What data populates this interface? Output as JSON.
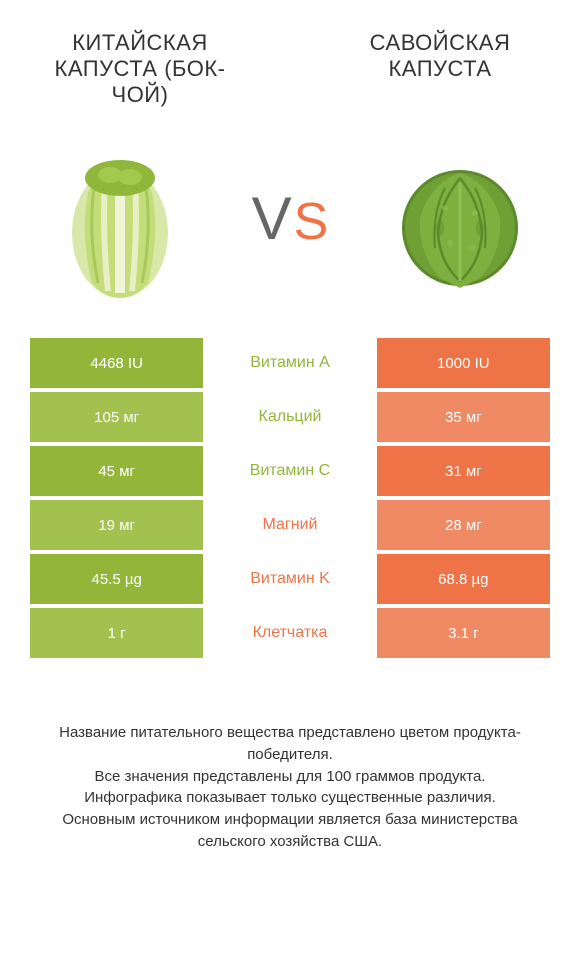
{
  "colors": {
    "left": "#93b53a",
    "right": "#ee7347",
    "left_dark": "#7a9a2f",
    "left_light": "#a3c14e",
    "right_light": "#f08a65",
    "mid_green": "#93b53a",
    "mid_orange": "#ee7347",
    "text": "#333333"
  },
  "left_title": "КИТАЙСКАЯ КАПУСТА (БОК-ЧОЙ)",
  "right_title": "САВОЙСКАЯ КАПУСТА",
  "vs_v": "V",
  "vs_s": "S",
  "rows": [
    {
      "left": "4468 IU",
      "mid": "Витамин A",
      "right": "1000 IU",
      "winner": "left"
    },
    {
      "left": "105 мг",
      "mid": "Кальций",
      "right": "35 мг",
      "winner": "left"
    },
    {
      "left": "45 мг",
      "mid": "Витамин C",
      "right": "31 мг",
      "winner": "left"
    },
    {
      "left": "19 мг",
      "mid": "Магний",
      "right": "28 мг",
      "winner": "right"
    },
    {
      "left": "45.5 µg",
      "mid": "Витамин K",
      "right": "68.8 µg",
      "winner": "right"
    },
    {
      "left": "1 г",
      "mid": "Клетчатка",
      "right": "3.1 г",
      "winner": "right"
    }
  ],
  "footer": "Название питательного вещества представлено цветом продукта-победителя.\nВсе значения представлены для 100 граммов продукта.\nИнфографика показывает только существенные различия.\nОсновным источником информации является база министерства сельского хозяйства США."
}
